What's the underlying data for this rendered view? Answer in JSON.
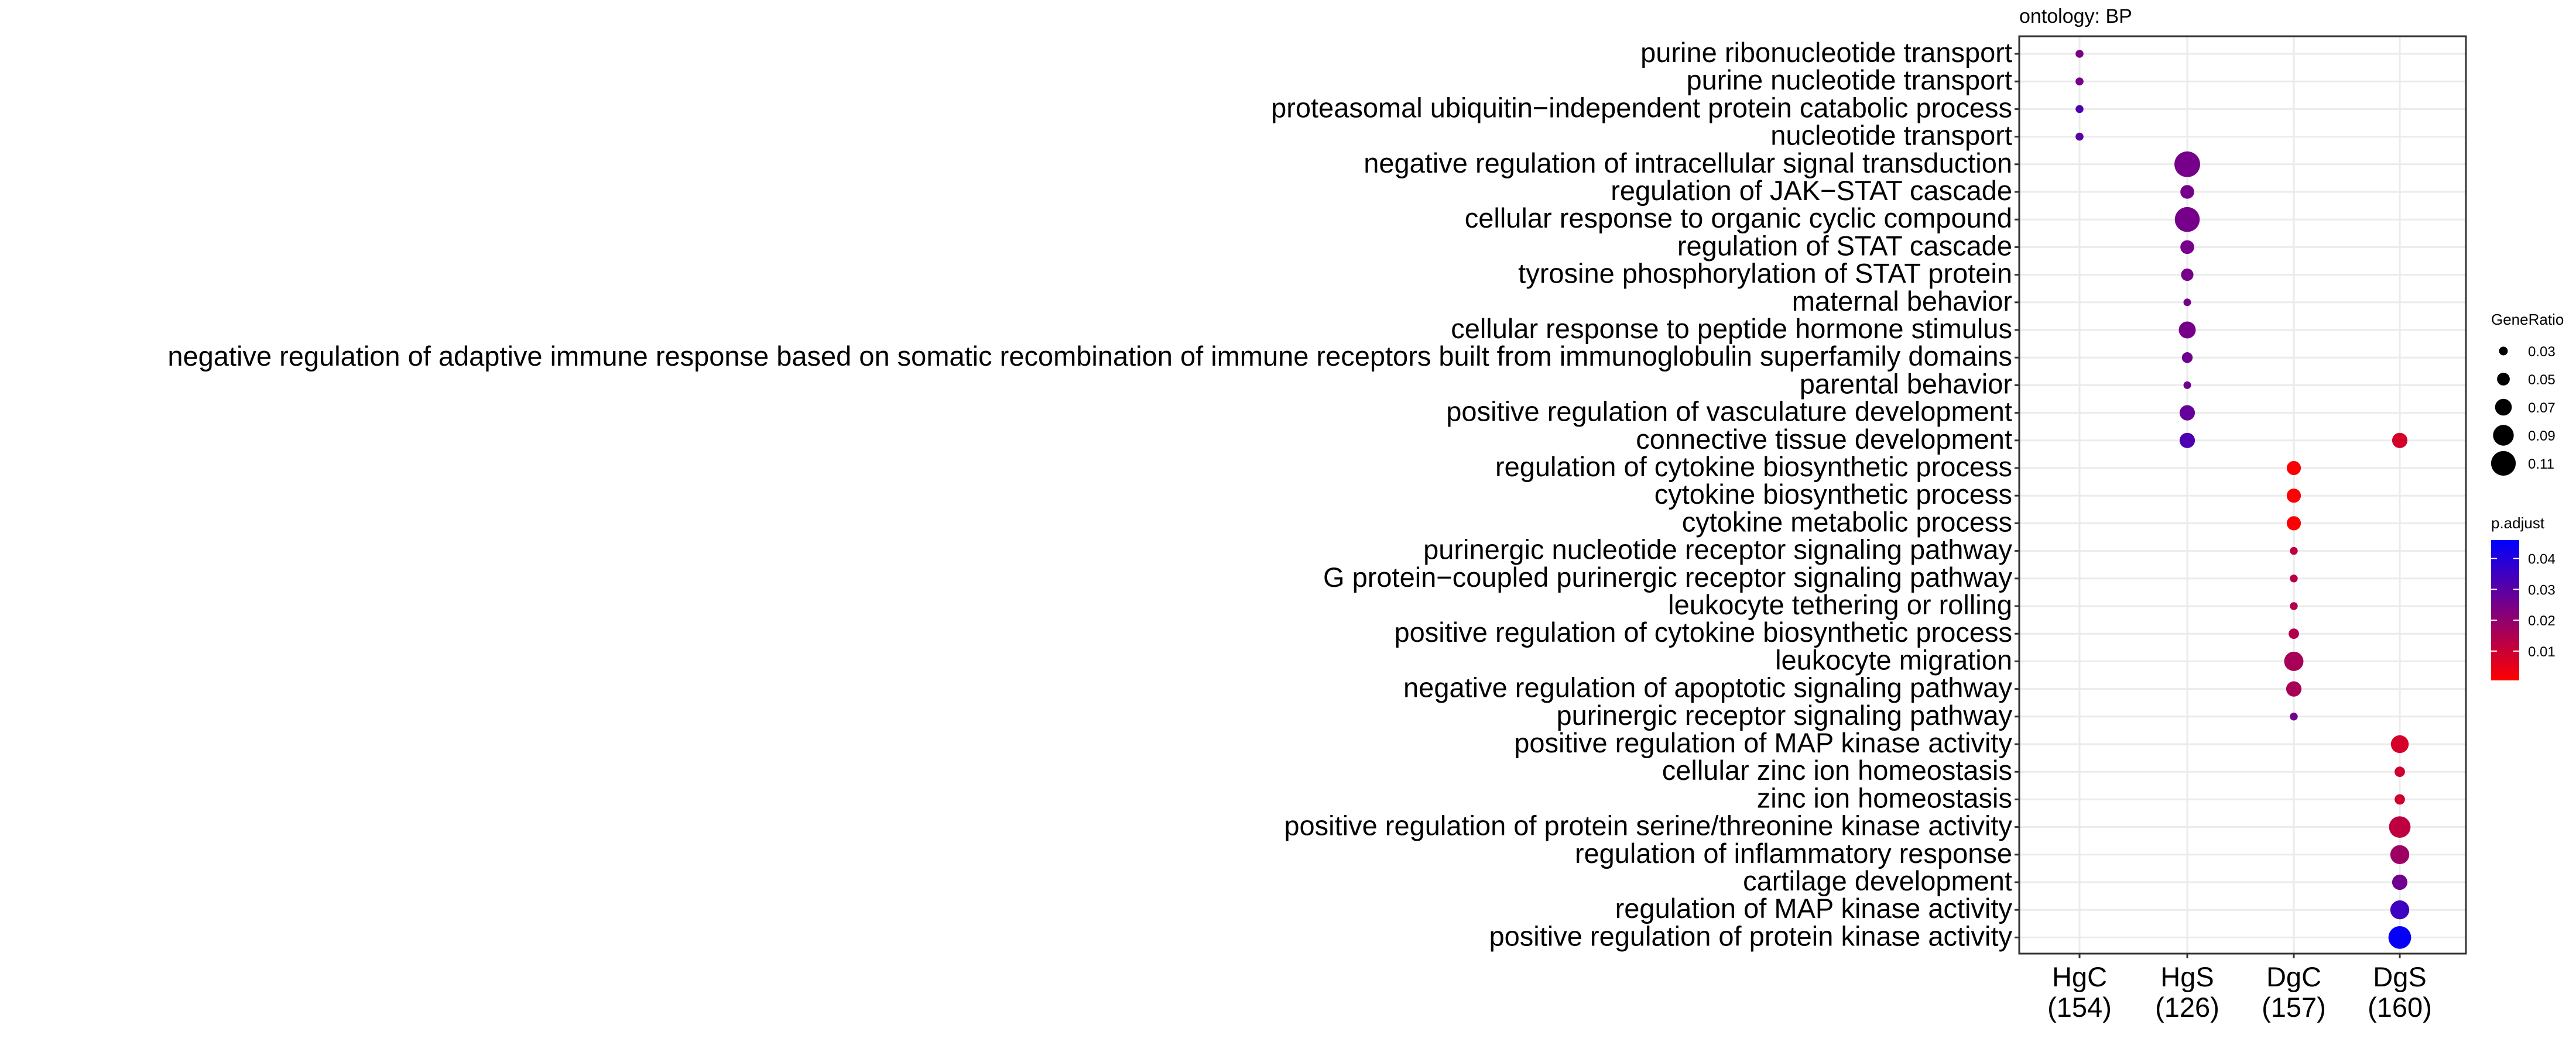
{
  "chart_data": {
    "type": "scatter",
    "title": "ontology: BP",
    "xlabel": "",
    "ylabel": "",
    "grid": true,
    "legend_position": "right",
    "categories": [
      "HgC\n(154)",
      "HgS\n(126)",
      "DgC\n(157)",
      "DgS\n(160)"
    ],
    "terms": [
      "purine ribonucleotide transport",
      "purine nucleotide transport",
      "proteasomal ubiquitin−independent protein catabolic process",
      "nucleotide transport",
      "negative regulation of intracellular signal transduction",
      "regulation of JAK−STAT cascade",
      "cellular response to organic cyclic compound",
      "regulation of STAT cascade",
      "tyrosine phosphorylation of STAT protein",
      "maternal behavior",
      "cellular response to peptide hormone stimulus",
      "negative regulation of adaptive immune response based on somatic recombination of immune receptors built from immunoglobulin superfamily domains",
      "parental behavior",
      "positive regulation of vasculature development",
      "connective tissue development",
      "regulation of cytokine biosynthetic process",
      "cytokine biosynthetic process",
      "cytokine metabolic process",
      "purinergic nucleotide receptor signaling pathway",
      "G protein−coupled purinergic receptor signaling pathway",
      "leukocyte tethering or rolling",
      "positive regulation of cytokine biosynthetic process",
      "leukocyte migration",
      "negative regulation of apoptotic signaling pathway",
      "purinergic receptor signaling pathway",
      "positive regulation of MAP kinase activity",
      "cellular zinc ion homeostasis",
      "zinc ion homeostasis",
      "positive regulation of protein serine/threonine kinase activity",
      "regulation of inflammatory response",
      "cartilage development",
      "regulation of MAP kinase activity",
      "positive regulation of protein kinase activity"
    ],
    "points": [
      {
        "x": "HgC\n(154)",
        "y": "purine ribonucleotide transport",
        "gene_ratio": 0.026,
        "p_adjust": 0.024
      },
      {
        "x": "HgC\n(154)",
        "y": "purine nucleotide transport",
        "gene_ratio": 0.026,
        "p_adjust": 0.025
      },
      {
        "x": "HgC\n(154)",
        "y": "proteasomal ubiquitin−independent protein catabolic process",
        "gene_ratio": 0.026,
        "p_adjust": 0.032
      },
      {
        "x": "HgC\n(154)",
        "y": "nucleotide transport",
        "gene_ratio": 0.026,
        "p_adjust": 0.03
      },
      {
        "x": "HgS\n(126)",
        "y": "negative regulation of intracellular signal transduction",
        "gene_ratio": 0.115,
        "p_adjust": 0.025
      },
      {
        "x": "HgS\n(126)",
        "y": "regulation of JAK−STAT cascade",
        "gene_ratio": 0.055,
        "p_adjust": 0.025
      },
      {
        "x": "HgS\n(126)",
        "y": "cellular response to organic cyclic compound",
        "gene_ratio": 0.111,
        "p_adjust": 0.025
      },
      {
        "x": "HgS\n(126)",
        "y": "regulation of STAT cascade",
        "gene_ratio": 0.055,
        "p_adjust": 0.025
      },
      {
        "x": "HgS\n(126)",
        "y": "tyrosine phosphorylation of STAT protein",
        "gene_ratio": 0.048,
        "p_adjust": 0.025
      },
      {
        "x": "HgS\n(126)",
        "y": "maternal behavior",
        "gene_ratio": 0.024,
        "p_adjust": 0.025
      },
      {
        "x": "HgS\n(126)",
        "y": "cellular response to peptide hormone stimulus",
        "gene_ratio": 0.071,
        "p_adjust": 0.025
      },
      {
        "x": "HgS\n(126)",
        "y": "negative regulation of adaptive immune response based on somatic recombination of immune receptors built from immunoglobulin superfamily domains",
        "gene_ratio": 0.04,
        "p_adjust": 0.026
      },
      {
        "x": "HgS\n(126)",
        "y": "parental behavior",
        "gene_ratio": 0.024,
        "p_adjust": 0.026
      },
      {
        "x": "HgS\n(126)",
        "y": "positive regulation of vasculature development",
        "gene_ratio": 0.063,
        "p_adjust": 0.028
      },
      {
        "x": "HgS\n(126)",
        "y": "connective tissue development",
        "gene_ratio": 0.063,
        "p_adjust": 0.032
      },
      {
        "x": "DgS\n(160)",
        "y": "connective tissue development",
        "gene_ratio": 0.063,
        "p_adjust": 0.008
      },
      {
        "x": "DgC\n(157)",
        "y": "regulation of cytokine biosynthetic process",
        "gene_ratio": 0.057,
        "p_adjust": 0.001
      },
      {
        "x": "DgC\n(157)",
        "y": "cytokine biosynthetic process",
        "gene_ratio": 0.057,
        "p_adjust": 0.001
      },
      {
        "x": "DgC\n(157)",
        "y": "cytokine metabolic process",
        "gene_ratio": 0.057,
        "p_adjust": 0.001
      },
      {
        "x": "DgC\n(157)",
        "y": "purinergic nucleotide receptor signaling pathway",
        "gene_ratio": 0.025,
        "p_adjust": 0.012
      },
      {
        "x": "DgC\n(157)",
        "y": "G protein−coupled purinergic receptor signaling pathway",
        "gene_ratio": 0.025,
        "p_adjust": 0.013
      },
      {
        "x": "DgC\n(157)",
        "y": "leukocyte tethering or rolling",
        "gene_ratio": 0.025,
        "p_adjust": 0.014
      },
      {
        "x": "DgC\n(157)",
        "y": "positive regulation of cytokine biosynthetic process",
        "gene_ratio": 0.038,
        "p_adjust": 0.014
      },
      {
        "x": "DgC\n(157)",
        "y": "leukocyte migration",
        "gene_ratio": 0.083,
        "p_adjust": 0.016
      },
      {
        "x": "DgC\n(157)",
        "y": "negative regulation of apoptotic signaling pathway",
        "gene_ratio": 0.063,
        "p_adjust": 0.016
      },
      {
        "x": "DgC\n(157)",
        "y": "purinergic receptor signaling pathway",
        "gene_ratio": 0.025,
        "p_adjust": 0.026
      },
      {
        "x": "DgS\n(160)",
        "y": "positive regulation of MAP kinase activity",
        "gene_ratio": 0.075,
        "p_adjust": 0.008
      },
      {
        "x": "DgS\n(160)",
        "y": "cellular zinc ion homeostasis",
        "gene_ratio": 0.038,
        "p_adjust": 0.009
      },
      {
        "x": "DgS\n(160)",
        "y": "zinc ion homeostasis",
        "gene_ratio": 0.038,
        "p_adjust": 0.009
      },
      {
        "x": "DgS\n(160)",
        "y": "positive regulation of protein serine/threonine kinase activity",
        "gene_ratio": 0.094,
        "p_adjust": 0.012
      },
      {
        "x": "DgS\n(160)",
        "y": "regulation of inflammatory response",
        "gene_ratio": 0.081,
        "p_adjust": 0.018
      },
      {
        "x": "DgS\n(160)",
        "y": "cartilage development",
        "gene_ratio": 0.063,
        "p_adjust": 0.026
      },
      {
        "x": "DgS\n(160)",
        "y": "regulation of MAP kinase activity",
        "gene_ratio": 0.081,
        "p_adjust": 0.035
      },
      {
        "x": "DgS\n(160)",
        "y": "positive regulation of protein kinase activity",
        "gene_ratio": 0.1,
        "p_adjust": 0.045
      }
    ],
    "size_legend": {
      "title": "GeneRatio",
      "breaks": [
        0.03,
        0.05,
        0.07,
        0.09,
        0.11
      ],
      "labels": [
        "0.03",
        "0.05",
        "0.07",
        "0.09",
        "0.11"
      ]
    },
    "color_legend": {
      "title": "p.adjust",
      "low_color": "#ff0000",
      "high_color": "#0000ff",
      "range": [
        0.0005,
        0.046
      ],
      "breaks": [
        0.01,
        0.02,
        0.03,
        0.04
      ],
      "labels": [
        "0.01",
        "0.02",
        "0.03",
        "0.04"
      ]
    },
    "colors": {
      "grid": "#ebebeb",
      "panel_border": "#333333",
      "axis_text": "#000000"
    }
  }
}
